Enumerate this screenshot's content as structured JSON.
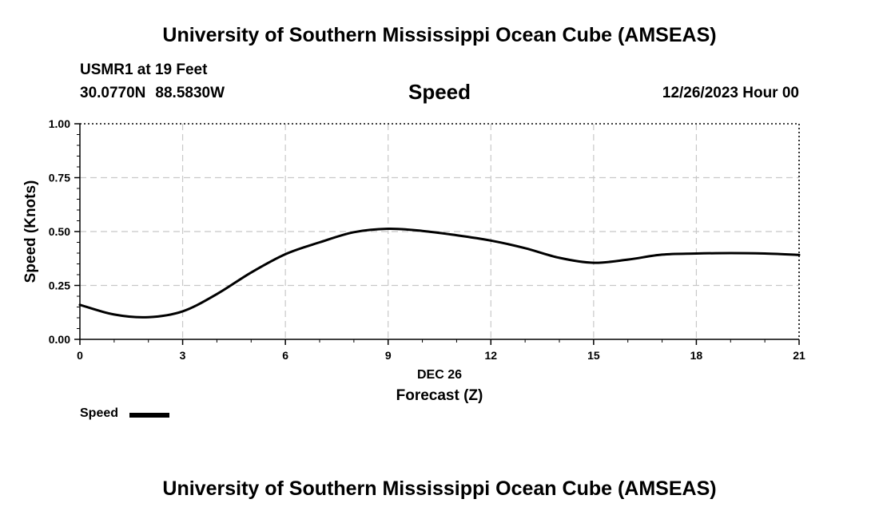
{
  "header": {
    "title": "University of Southern Mississippi Ocean Cube (AMSEAS)",
    "station": "USMR1 at 19 Feet",
    "latitude": "30.0770N",
    "longitude": "88.5830W",
    "variable": "Speed",
    "datetime": "12/26/2023 Hour 00"
  },
  "footer": {
    "title": "University of Southern Mississippi Ocean Cube (AMSEAS)"
  },
  "legend": {
    "label": "Speed",
    "color": "#000000"
  },
  "chart_data": {
    "type": "line",
    "title": "Speed",
    "xlabel": "Forecast (Z)",
    "xdate": "DEC 26",
    "ylabel": "Speed (Knots)",
    "xlim": [
      0,
      21
    ],
    "ylim": [
      0,
      1
    ],
    "xticks": [
      0,
      3,
      6,
      9,
      12,
      15,
      18,
      21
    ],
    "xtick_labels": [
      "0",
      "3",
      "6",
      "9",
      "12",
      "15",
      "18",
      "21"
    ],
    "yticks": [
      0,
      0.25,
      0.5,
      0.75,
      1.0
    ],
    "ytick_labels": [
      "0.00",
      "0.25",
      "0.50",
      "0.75",
      "1.00"
    ],
    "grid": true,
    "legend_position": "bottom-left",
    "series": [
      {
        "name": "Speed",
        "color": "#000000",
        "x": [
          0,
          1,
          2,
          3,
          4,
          5,
          6,
          7,
          8,
          9,
          10,
          11,
          12,
          13,
          14,
          15,
          16,
          17,
          18,
          19,
          20,
          21
        ],
        "values": [
          0.16,
          0.115,
          0.103,
          0.13,
          0.21,
          0.31,
          0.395,
          0.45,
          0.497,
          0.513,
          0.503,
          0.483,
          0.458,
          0.423,
          0.378,
          0.355,
          0.37,
          0.393,
          0.398,
          0.4,
          0.398,
          0.392
        ]
      }
    ]
  }
}
